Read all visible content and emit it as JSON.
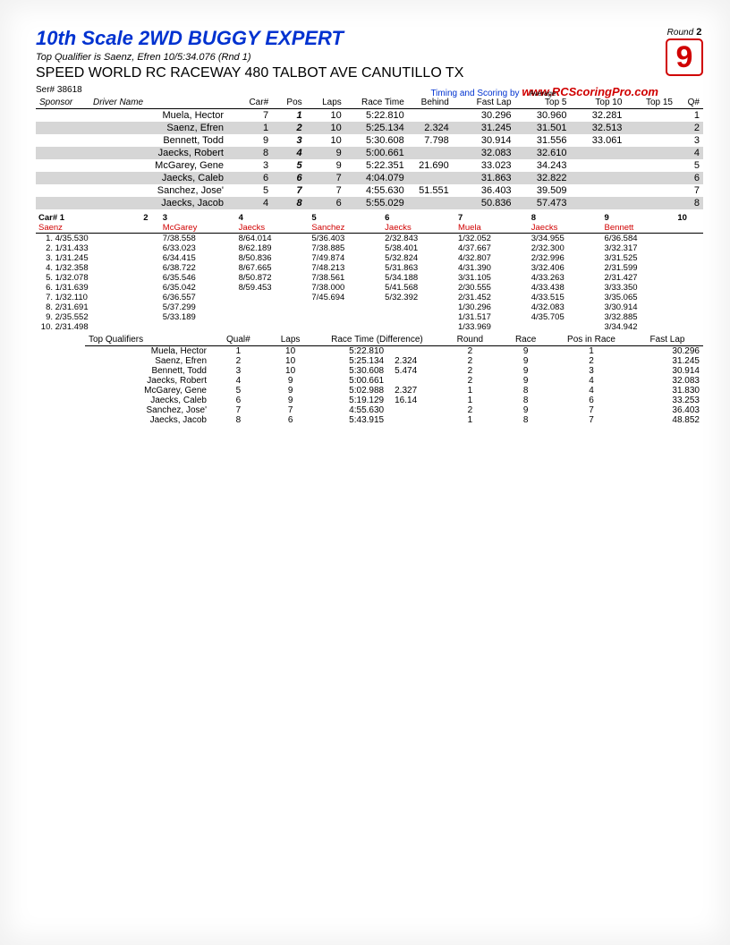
{
  "header": {
    "title": "10th Scale 2WD BUGGY EXPERT",
    "subtitle": "Top Qualifier is Saenz, Efren 10/5:34.076 (Rnd 1)",
    "venue": "SPEED WORLD RC RACEWAY 480 TALBOT AVE CANUTILLO TX",
    "serial": "Ser# 38618",
    "round_label": "Round",
    "round": "2",
    "race": "9",
    "timing_by": "Timing and Scoring by",
    "url": "www.RCScoringPro.com"
  },
  "results": {
    "columns": {
      "sponsor": "Sponsor",
      "driver": "Driver Name",
      "car": "Car#",
      "pos": "Pos",
      "laps": "Laps",
      "race_time": "Race Time",
      "behind": "Behind",
      "fast_lap": "Fast Lap",
      "avg_label": "Average",
      "top5": "Top 5",
      "top10": "Top 10",
      "top15": "Top 15",
      "qnum": "Q#"
    },
    "rows": [
      {
        "driver": "Muela, Hector",
        "car": "7",
        "pos": "1",
        "laps": "10",
        "rt": "5:22.810",
        "behind": "",
        "fl": "30.296",
        "t5": "30.960",
        "t10": "32.281",
        "t15": "",
        "q": "1",
        "shade": false
      },
      {
        "driver": "Saenz, Efren",
        "car": "1",
        "pos": "2",
        "laps": "10",
        "rt": "5:25.134",
        "behind": "2.324",
        "fl": "31.245",
        "t5": "31.501",
        "t10": "32.513",
        "t15": "",
        "q": "2",
        "shade": true
      },
      {
        "driver": "Bennett, Todd",
        "car": "9",
        "pos": "3",
        "laps": "10",
        "rt": "5:30.608",
        "behind": "7.798",
        "fl": "30.914",
        "t5": "31.556",
        "t10": "33.061",
        "t15": "",
        "q": "3",
        "shade": false
      },
      {
        "driver": "Jaecks, Robert",
        "car": "8",
        "pos": "4",
        "laps": "9",
        "rt": "5:00.661",
        "behind": "",
        "fl": "32.083",
        "t5": "32.610",
        "t10": "",
        "t15": "",
        "q": "4",
        "shade": true
      },
      {
        "driver": "McGarey, Gene",
        "car": "3",
        "pos": "5",
        "laps": "9",
        "rt": "5:22.351",
        "behind": "21.690",
        "fl": "33.023",
        "t5": "34.243",
        "t10": "",
        "t15": "",
        "q": "5",
        "shade": false
      },
      {
        "driver": "Jaecks, Caleb",
        "car": "6",
        "pos": "6",
        "laps": "7",
        "rt": "4:04.079",
        "behind": "",
        "fl": "31.863",
        "t5": "32.822",
        "t10": "",
        "t15": "",
        "q": "6",
        "shade": true
      },
      {
        "driver": "Sanchez, Jose'",
        "car": "5",
        "pos": "7",
        "laps": "7",
        "rt": "4:55.630",
        "behind": "51.551",
        "fl": "36.403",
        "t5": "39.509",
        "t10": "",
        "t15": "",
        "q": "7",
        "shade": false
      },
      {
        "driver": "Jaecks, Jacob",
        "car": "4",
        "pos": "8",
        "laps": "6",
        "rt": "5:55.029",
        "behind": "",
        "fl": "50.836",
        "t5": "57.473",
        "t10": "",
        "t15": "",
        "q": "8",
        "shade": true
      }
    ]
  },
  "lap_grid": {
    "car_label": "Car#",
    "car_nums": [
      "1",
      "2",
      "3",
      "4",
      "5",
      "6",
      "7",
      "8",
      "9",
      "10"
    ],
    "driver_names": [
      "Saenz",
      "",
      "McGarey",
      "Jaecks",
      "Sanchez",
      "Jaecks",
      "Muela",
      "Jaecks",
      "Bennett",
      ""
    ],
    "rows": [
      [
        "4/35.530",
        "",
        "7/38.558",
        "8/64.014",
        "5/36.403",
        "2/32.843",
        "1/32.052",
        "3/34.955",
        "6/36.584",
        ""
      ],
      [
        "1/31.433",
        "",
        "6/33.023",
        "8/62.189",
        "7/38.885",
        "5/38.401",
        "4/37.667",
        "2/32.300",
        "3/32.317",
        ""
      ],
      [
        "1/31.245",
        "",
        "6/34.415",
        "8/50.836",
        "7/49.874",
        "5/32.824",
        "4/32.807",
        "2/32.996",
        "3/31.525",
        ""
      ],
      [
        "1/32.358",
        "",
        "6/38.722",
        "8/67.665",
        "7/48.213",
        "5/31.863",
        "4/31.390",
        "3/32.406",
        "2/31.599",
        ""
      ],
      [
        "1/32.078",
        "",
        "6/35.546",
        "8/50.872",
        "7/38.561",
        "5/34.188",
        "3/31.105",
        "4/33.263",
        "2/31.427",
        ""
      ],
      [
        "1/31.639",
        "",
        "6/35.042",
        "8/59.453",
        "7/38.000",
        "5/41.568",
        "2/30.555",
        "4/33.438",
        "3/33.350",
        ""
      ],
      [
        "1/32.110",
        "",
        "6/36.557",
        "",
        "7/45.694",
        "5/32.392",
        "2/31.452",
        "4/33.515",
        "3/35.065",
        ""
      ],
      [
        "2/31.691",
        "",
        "5/37.299",
        "",
        "",
        "",
        "1/30.296",
        "4/32.083",
        "3/30.914",
        ""
      ],
      [
        "2/35.552",
        "",
        "5/33.189",
        "",
        "",
        "",
        "1/31.517",
        "4/35.705",
        "3/32.885",
        ""
      ],
      [
        "2/31.498",
        "",
        "",
        "",
        "",
        "",
        "1/33.969",
        "",
        "3/34.942",
        ""
      ]
    ]
  },
  "tq": {
    "columns": {
      "tq": "Top Qualifiers",
      "qual": "Qual#",
      "laps": "Laps",
      "rt": "Race Time (Difference)",
      "round": "Round",
      "race": "Race",
      "pos": "Pos in Race",
      "fl": "Fast Lap"
    },
    "rows": [
      {
        "name": "Muela, Hector",
        "q": "1",
        "laps": "10",
        "rt": "5:22.810",
        "diff": "",
        "round": "2",
        "race": "9",
        "pos": "1",
        "fl": "30.296"
      },
      {
        "name": "Saenz, Efren",
        "q": "2",
        "laps": "10",
        "rt": "5:25.134",
        "diff": "2.324",
        "round": "2",
        "race": "9",
        "pos": "2",
        "fl": "31.245"
      },
      {
        "name": "Bennett, Todd",
        "q": "3",
        "laps": "10",
        "rt": "5:30.608",
        "diff": "5.474",
        "round": "2",
        "race": "9",
        "pos": "3",
        "fl": "30.914"
      },
      {
        "name": "Jaecks, Robert",
        "q": "4",
        "laps": "9",
        "rt": "5:00.661",
        "diff": "",
        "round": "2",
        "race": "9",
        "pos": "4",
        "fl": "32.083"
      },
      {
        "name": "McGarey, Gene",
        "q": "5",
        "laps": "9",
        "rt": "5:02.988",
        "diff": "2.327",
        "round": "1",
        "race": "8",
        "pos": "4",
        "fl": "31.830"
      },
      {
        "name": "Jaecks, Caleb",
        "q": "6",
        "laps": "9",
        "rt": "5:19.129",
        "diff": "16.14",
        "round": "1",
        "race": "8",
        "pos": "6",
        "fl": "33.253"
      },
      {
        "name": "Sanchez, Jose'",
        "q": "7",
        "laps": "7",
        "rt": "4:55.630",
        "diff": "",
        "round": "2",
        "race": "9",
        "pos": "7",
        "fl": "36.403"
      },
      {
        "name": "Jaecks, Jacob",
        "q": "8",
        "laps": "6",
        "rt": "5:43.915",
        "diff": "",
        "round": "1",
        "race": "8",
        "pos": "7",
        "fl": "48.852"
      }
    ]
  }
}
